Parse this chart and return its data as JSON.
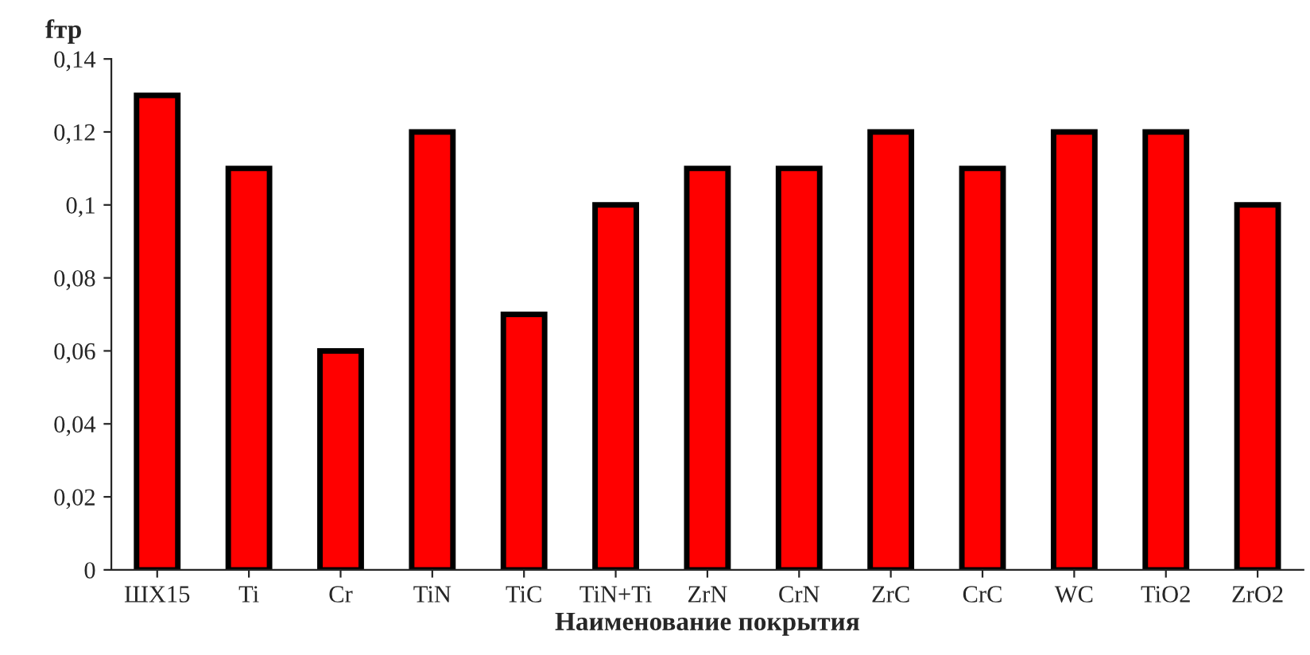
{
  "chart_data": {
    "type": "bar",
    "ylabel": "fтр",
    "xlabel": "Наименование покрытия",
    "categories": [
      "ШХ15",
      "Ti",
      "Cr",
      "TiN",
      "TiC",
      "TiN+Ti",
      "ZrN",
      "CrN",
      "ZrC",
      "CrC",
      "WC",
      "TiO2",
      "ZrO2"
    ],
    "values": [
      0.13,
      0.11,
      0.06,
      0.12,
      0.07,
      0.1,
      0.11,
      0.11,
      0.12,
      0.11,
      0.12,
      0.12,
      0.1
    ],
    "color": "#ff0000",
    "ylim": [
      0,
      0.14
    ],
    "yticks": [
      {
        "value": 0,
        "label": "0"
      },
      {
        "value": 0.02,
        "label": "0,02"
      },
      {
        "value": 0.04,
        "label": "0,04"
      },
      {
        "value": 0.06,
        "label": "0,06"
      },
      {
        "value": 0.08,
        "label": "0,08"
      },
      {
        "value": 0.1,
        "label": "0,1"
      },
      {
        "value": 0.12,
        "label": "0,12"
      },
      {
        "value": 0.14,
        "label": "0,14"
      }
    ],
    "grid": false,
    "legend": false
  }
}
